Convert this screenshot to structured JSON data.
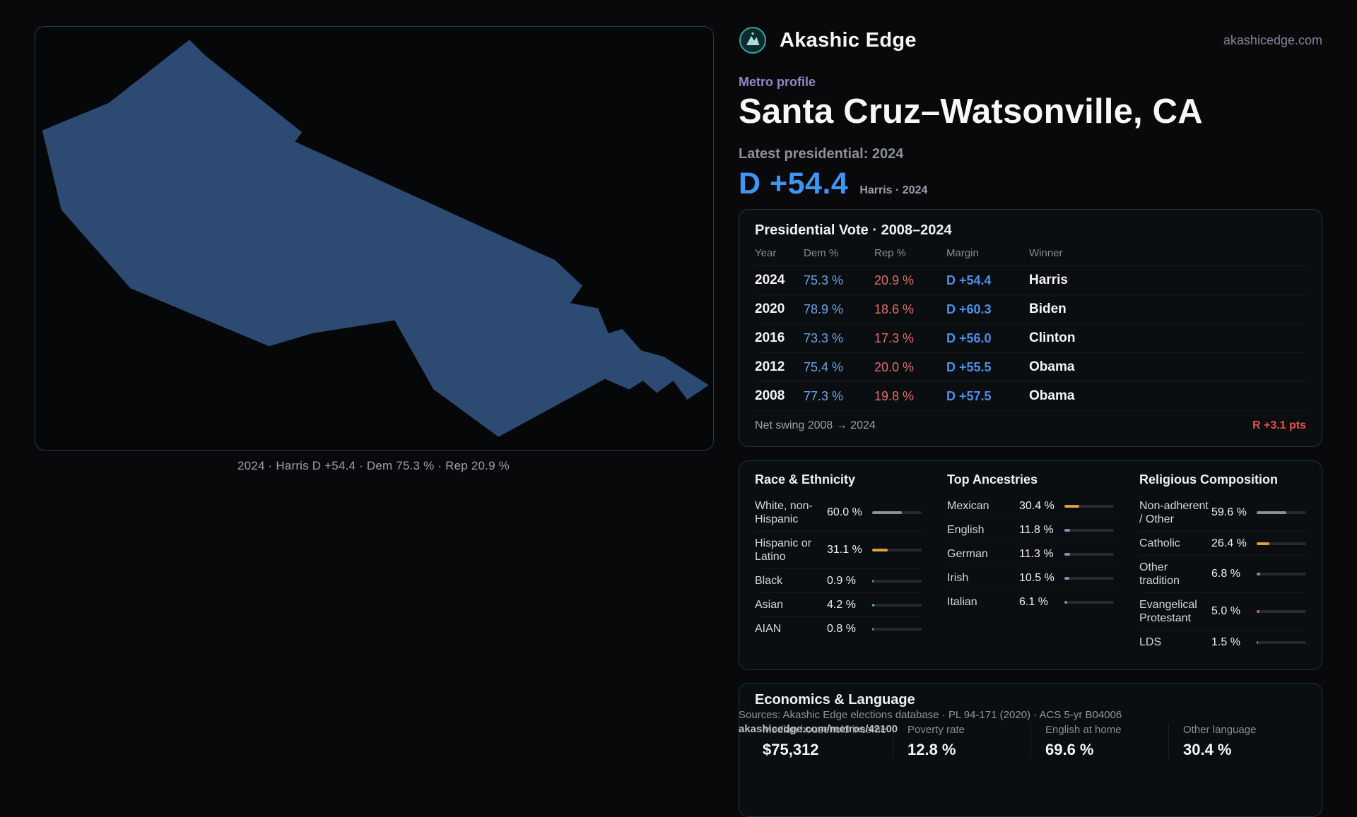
{
  "brand": {
    "name": "Akashic Edge",
    "domain": "akashicedge.com",
    "accent_teal": "#3fd0c9"
  },
  "page": {
    "eyebrow": "Metro profile",
    "title": "Santa Cruz–Watsonville, CA",
    "latest_line": "Latest presidential: 2024",
    "headline_margin": "D +54.4",
    "headline_note": "Harris · 2024",
    "dem_blue": "#3d96f4",
    "rep_red": "#e64d4d"
  },
  "map": {
    "caption": "2024 · Harris D +54.4 · Dem 75.3 % · Rep 20.9 %",
    "fill": "#2d4a73"
  },
  "vote_table": {
    "title": "Presidential Vote · 2008–2024",
    "columns": [
      "Year",
      "Dem %",
      "Rep %",
      "Margin",
      "Winner"
    ],
    "rows": [
      {
        "year": "2024",
        "dem": "75.3 %",
        "rep": "20.9 %",
        "margin": "D +54.4",
        "winner": "Harris"
      },
      {
        "year": "2020",
        "dem": "78.9 %",
        "rep": "18.6 %",
        "margin": "D +60.3",
        "winner": "Biden"
      },
      {
        "year": "2016",
        "dem": "73.3 %",
        "rep": "17.3 %",
        "margin": "D +56.0",
        "winner": "Clinton"
      },
      {
        "year": "2012",
        "dem": "75.4 %",
        "rep": "20.0 %",
        "margin": "D +55.5",
        "winner": "Obama"
      },
      {
        "year": "2008",
        "dem": "77.3 %",
        "rep": "19.8 %",
        "margin": "D +57.5",
        "winner": "Obama"
      }
    ],
    "footer_label": "Net swing 2008 → 2024",
    "footer_value": "R +3.1 pts"
  },
  "demographics": {
    "race": {
      "title": "Race & Ethnicity",
      "rows": [
        {
          "label": "White, non-Hispanic",
          "value": "60.0 %",
          "pct": 60.0,
          "color": "#8b919b"
        },
        {
          "label": "Hispanic or Latino",
          "value": "31.1 %",
          "pct": 31.1,
          "color": "#d9a23c"
        },
        {
          "label": "Black",
          "value": "0.9 %",
          "pct": 0.9,
          "color": "#8b919b"
        },
        {
          "label": "Asian",
          "value": "4.2 %",
          "pct": 4.2,
          "color": "#37c9a8"
        },
        {
          "label": "AIAN",
          "value": "0.8 %",
          "pct": 0.8,
          "color": "#8b919b"
        }
      ]
    },
    "ancestries": {
      "title": "Top Ancestries",
      "rows": [
        {
          "label": "Mexican",
          "value": "30.4 %",
          "pct": 30.4,
          "color": "#d9a23c"
        },
        {
          "label": "English",
          "value": "11.8 %",
          "pct": 11.8,
          "color": "#7e93b8"
        },
        {
          "label": "German",
          "value": "11.3 %",
          "pct": 11.3,
          "color": "#7e93b8"
        },
        {
          "label": "Irish",
          "value": "10.5 %",
          "pct": 10.5,
          "color": "#7e93b8"
        },
        {
          "label": "Italian",
          "value": "6.1 %",
          "pct": 6.1,
          "color": "#7e93b8"
        }
      ]
    },
    "religion": {
      "title": "Religious Composition",
      "rows": [
        {
          "label": "Non-adherent / Other",
          "value": "59.6 %",
          "pct": 59.6,
          "color": "#8b919b"
        },
        {
          "label": "Catholic",
          "value": "26.4 %",
          "pct": 26.4,
          "color": "#d9a23c"
        },
        {
          "label": "Other tradition",
          "value": "6.8 %",
          "pct": 6.8,
          "color": "#8b919b"
        },
        {
          "label": "Evangelical Protestant",
          "value": "5.0 %",
          "pct": 5.0,
          "color": "#d96a5f"
        },
        {
          "label": "LDS",
          "value": "1.5 %",
          "pct": 1.5,
          "color": "#37c9a8"
        }
      ]
    }
  },
  "economics": {
    "title": "Economics & Language",
    "stats": [
      {
        "label": "Median household income",
        "value": "$75,312"
      },
      {
        "label": "Poverty rate",
        "value": "12.8 %"
      },
      {
        "label": "English at home",
        "value": "69.6 %"
      },
      {
        "label": "Other language",
        "value": "30.4 %"
      }
    ]
  },
  "footer": {
    "sources": "Sources: Akashic Edge elections database · PL 94-171 (2020) · ACS 5-yr B04006",
    "permalink": "akashicedge.com/metros/42100"
  }
}
